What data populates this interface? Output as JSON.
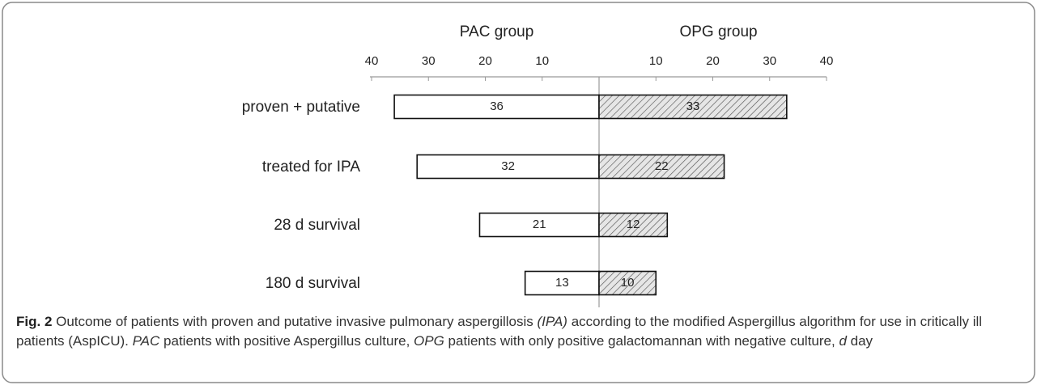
{
  "chart_data": {
    "type": "butterfly_bar",
    "categories": [
      "proven + putative",
      "treated for IPA",
      "28 d survival",
      "180 d survival"
    ],
    "series": [
      {
        "name": "PAC group",
        "color": "#ffffff",
        "side": "left",
        "values": [
          36,
          32,
          21,
          13
        ]
      },
      {
        "name": "OPG group",
        "color": "hatched",
        "side": "right",
        "values": [
          33,
          22,
          12,
          10
        ]
      }
    ],
    "xlim": [
      0,
      40
    ],
    "left_ticks": [
      40,
      30,
      20,
      10
    ],
    "right_ticks": [
      10,
      20,
      30,
      40
    ]
  },
  "caption": {
    "label": "Fig. 2",
    "runs": [
      {
        "text": " Outcome of patients with proven and putative invasive pulmonary aspergillosis ",
        "italic": false
      },
      {
        "text": "(IPA)",
        "italic": true
      },
      {
        "text": " according to the modified Aspergillus algorithm for use in critically ill patients (AspICU). ",
        "italic": false
      },
      {
        "text": "PAC",
        "italic": true
      },
      {
        "text": " patients with positive Aspergillus culture, ",
        "italic": false
      },
      {
        "text": "OPG",
        "italic": true
      },
      {
        "text": " patients with only positive galactomannan with negative culture, ",
        "italic": false
      },
      {
        "text": "d",
        "italic": true
      },
      {
        "text": " day",
        "italic": false
      }
    ]
  }
}
